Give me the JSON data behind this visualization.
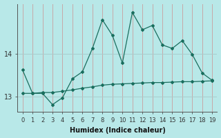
{
  "line1_x": [
    0,
    1,
    2,
    3,
    4,
    5,
    6,
    7,
    8,
    9,
    10,
    11,
    12,
    13,
    14,
    15,
    16,
    17,
    18,
    19
  ],
  "line1_y": [
    13.62,
    13.08,
    13.08,
    12.82,
    12.98,
    13.42,
    13.58,
    14.12,
    14.78,
    14.42,
    13.78,
    14.95,
    14.55,
    14.65,
    14.2,
    14.12,
    14.3,
    13.98,
    13.55,
    13.38
  ],
  "line2_x": [
    0,
    1,
    2,
    3,
    4,
    5,
    6,
    7,
    8,
    9,
    10,
    11,
    12,
    13,
    14,
    15,
    16,
    17,
    18,
    19
  ],
  "line2_y": [
    13.08,
    13.08,
    13.1,
    13.1,
    13.13,
    13.16,
    13.2,
    13.23,
    13.27,
    13.29,
    13.3,
    13.31,
    13.32,
    13.33,
    13.33,
    13.34,
    13.35,
    13.35,
    13.36,
    13.37
  ],
  "line_color": "#1a6e5e",
  "bg_color": "#b8e8e8",
  "vgrid_color": "#c8a8a8",
  "hgrid_color": "#a8cccc",
  "xlabel": "Humidex (Indice chaleur)",
  "ylim": [
    12.65,
    15.15
  ],
  "xlim": [
    -0.5,
    19.5
  ],
  "yticks": [
    13,
    14
  ],
  "xticks": [
    0,
    1,
    2,
    3,
    4,
    5,
    6,
    7,
    8,
    9,
    10,
    11,
    12,
    13,
    14,
    15,
    16,
    17,
    18,
    19
  ],
  "marker": "D",
  "markersize": 2.0,
  "linewidth": 0.9,
  "xlabel_fontsize": 7,
  "tick_fontsize": 6,
  "ytick_fontsize": 7
}
